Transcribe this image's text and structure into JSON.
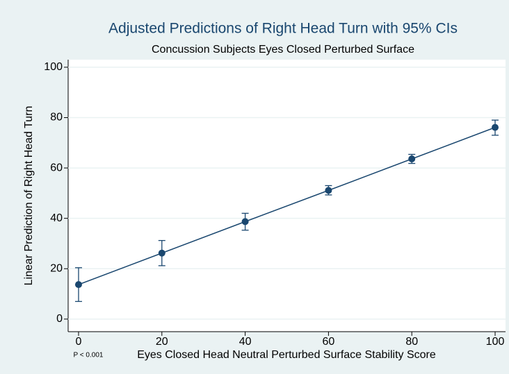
{
  "chart_data": {
    "type": "line",
    "title": "Adjusted Predictions of Right Head Turn with 95% CIs",
    "subtitle": "Concussion Subjects Eyes Closed Perturbed Surface",
    "x_label": "Eyes Closed Head Neutral Perturbed Surface Stability Score",
    "y_label": "Linear Prediction of Right Head Turn",
    "annotation": "P < 0.001",
    "x": [
      0,
      20,
      40,
      60,
      80,
      100
    ],
    "series": [
      {
        "color": "#1a476f",
        "values": [
          13.7,
          26.2,
          38.7,
          51.1,
          63.6,
          76.1
        ],
        "lower": [
          7,
          21.2,
          35.3,
          49.3,
          61.8,
          73
        ],
        "upper": [
          20.4,
          31.2,
          42,
          53,
          65.4,
          79
        ]
      }
    ],
    "xlim": [
      -2.5,
      102.5
    ],
    "xticks": [
      0,
      20,
      40,
      60,
      80,
      100
    ],
    "ylim": [
      -5,
      103
    ],
    "yticks": [
      0,
      20,
      40,
      60,
      80,
      100
    ],
    "grid": true
  }
}
